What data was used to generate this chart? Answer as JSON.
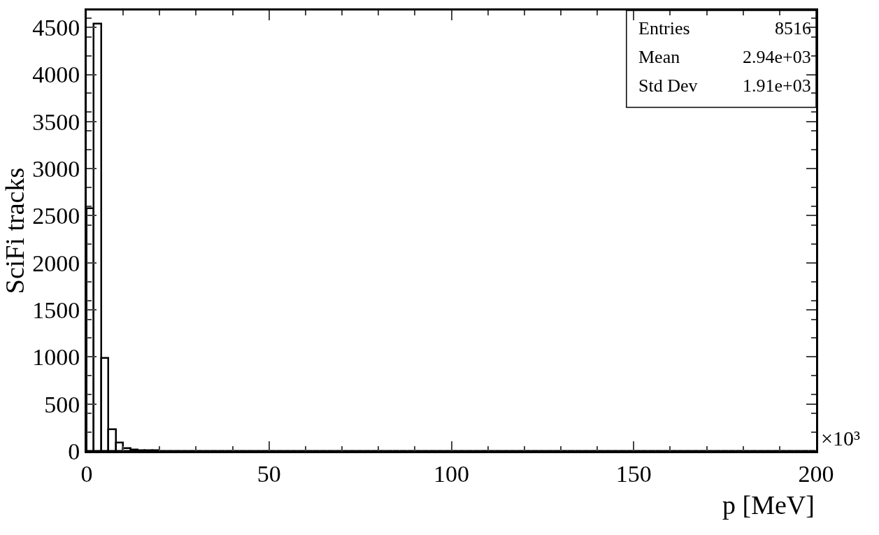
{
  "chart_data": {
    "type": "histogram",
    "xlabel": "p [MeV]",
    "ylabel": "SciFi tracks",
    "annotations": [
      "Entries",
      "8516",
      "Mean",
      "2.94e+03",
      "Std Dev",
      "1.91e+03",
      "×10³"
    ],
    "bins": [
      0,
      2,
      4,
      6,
      8,
      10,
      12,
      14,
      16,
      18,
      20,
      22,
      24,
      26,
      28,
      30,
      32,
      34,
      36,
      38,
      40,
      42,
      44,
      46,
      48,
      50,
      52,
      54,
      56,
      58,
      60,
      62,
      64,
      66,
      68,
      70,
      72,
      74,
      76,
      78,
      80,
      82,
      84,
      86,
      88,
      90,
      92,
      94,
      96,
      98,
      100,
      102,
      104,
      106,
      108,
      110,
      112,
      114,
      116,
      118,
      120,
      122,
      124,
      126,
      128,
      130,
      132,
      134,
      136,
      138,
      140,
      142,
      144,
      146,
      148,
      150,
      152,
      154,
      156,
      158,
      160,
      162,
      164,
      166,
      168,
      170,
      172,
      174,
      176,
      178,
      180,
      182,
      184,
      186,
      188,
      190,
      192,
      194,
      196,
      198,
      200
    ],
    "values": [
      2580,
      4540,
      990,
      230,
      90,
      30,
      12,
      8,
      6,
      4,
      3,
      2,
      2,
      1,
      1,
      1,
      1,
      1,
      0,
      1,
      0,
      0,
      1,
      0,
      0,
      0,
      0,
      0,
      0,
      0,
      0,
      0,
      0,
      0,
      0,
      0,
      0,
      0,
      0,
      0,
      0,
      0,
      0,
      0,
      0,
      0,
      0,
      0,
      0,
      0,
      0,
      0,
      0,
      0,
      0,
      0,
      0,
      0,
      0,
      0,
      0,
      0,
      0,
      0,
      0,
      0,
      0,
      0,
      0,
      0,
      0,
      0,
      0,
      0,
      0,
      0,
      0,
      0,
      0,
      0,
      0,
      0,
      0,
      0,
      0,
      0,
      0,
      0,
      0,
      0,
      0,
      0,
      0,
      0,
      0,
      0,
      0,
      0,
      0,
      0
    ],
    "color": "#000000",
    "xlim": [
      0,
      200
    ],
    "xticks": [
      0,
      50,
      100,
      150,
      200
    ],
    "ylim": [
      0,
      4680
    ],
    "yticks": [
      0,
      500,
      1000,
      1500,
      2000,
      2500,
      3000,
      3500,
      4000,
      4500
    ]
  }
}
